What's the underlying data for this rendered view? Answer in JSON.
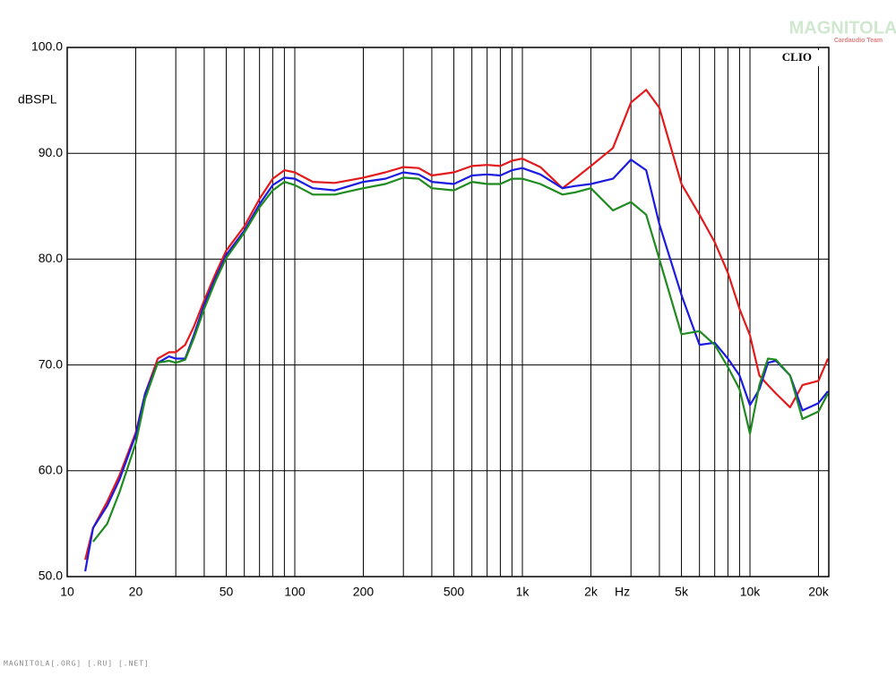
{
  "chart_data": {
    "type": "line",
    "brand": "CLIO",
    "y_label": "dBSPL",
    "x_unit": "Hz",
    "x_log": true,
    "grid": true,
    "x": [
      12,
      13,
      15,
      17,
      20,
      22,
      25,
      28,
      30,
      33,
      36,
      40,
      45,
      50,
      60,
      70,
      80,
      90,
      100,
      120,
      150,
      200,
      250,
      300,
      350,
      400,
      500,
      600,
      700,
      800,
      900,
      1000,
      1200,
      1500,
      1700,
      2000,
      2500,
      3000,
      3500,
      4000,
      5000,
      6000,
      7000,
      8000,
      9000,
      10000,
      11000,
      12000,
      13000,
      15000,
      17000,
      20000,
      22000
    ],
    "series": [
      {
        "color": "#e31a1c",
        "values": [
          51.6,
          54.6,
          57.1,
          59.6,
          63.6,
          67.3,
          70.6,
          71.2,
          71.2,
          71.9,
          73.6,
          76.1,
          78.7,
          80.8,
          83.1,
          85.7,
          87.6,
          88.4,
          88.2,
          87.3,
          87.2,
          87.7,
          88.2,
          88.7,
          88.6,
          87.9,
          88.2,
          88.8,
          88.9,
          88.8,
          89.3,
          89.5,
          88.7,
          86.7,
          87.6,
          88.8,
          90.5,
          94.8,
          96.0,
          94.3,
          87.1,
          84.2,
          81.6,
          78.7,
          75.3,
          72.8,
          69.0,
          68.1,
          67.3,
          66.0,
          68.1,
          68.5,
          70.6
        ]
      },
      {
        "color": "#1a1ae0",
        "values": [
          50.5,
          54.6,
          56.7,
          59.2,
          63.4,
          67.3,
          70.2,
          70.8,
          70.6,
          70.6,
          72.8,
          75.7,
          78.3,
          80.4,
          82.7,
          85.2,
          87.0,
          87.7,
          87.6,
          86.7,
          86.5,
          87.3,
          87.6,
          88.2,
          88.0,
          87.3,
          87.1,
          87.9,
          88.0,
          87.9,
          88.4,
          88.6,
          88.0,
          86.7,
          86.9,
          87.1,
          87.6,
          89.4,
          88.4,
          83.3,
          76.6,
          71.9,
          72.1,
          70.6,
          69.0,
          66.2,
          67.7,
          70.2,
          70.4,
          69.0,
          65.7,
          66.4,
          67.5
        ]
      },
      {
        "color": "#1f8a1f",
        "values": [
          null,
          53.3,
          55.0,
          58.0,
          62.6,
          66.8,
          70.2,
          70.4,
          70.2,
          70.5,
          72.5,
          75.3,
          78.0,
          80.1,
          82.5,
          84.9,
          86.5,
          87.3,
          87.0,
          86.1,
          86.1,
          86.7,
          87.1,
          87.7,
          87.6,
          86.7,
          86.5,
          87.3,
          87.1,
          87.1,
          87.6,
          87.6,
          87.1,
          86.1,
          86.3,
          86.7,
          84.6,
          85.4,
          84.2,
          80.0,
          72.9,
          73.2,
          71.9,
          69.8,
          67.7,
          63.5,
          68.1,
          70.6,
          70.5,
          69.0,
          64.9,
          65.6,
          67.3
        ]
      }
    ],
    "xlim": [
      10,
      22200
    ],
    "ylim": [
      50,
      100
    ],
    "xticks": [
      10,
      20,
      50,
      100,
      200,
      500,
      {
        "value": 1000,
        "label": "1k"
      },
      {
        "value": 2000,
        "label": "2k"
      },
      {
        "value": 5000,
        "label": "5k"
      },
      {
        "value": 10000,
        "label": "10k"
      },
      {
        "value": 20000,
        "label": "20k"
      }
    ],
    "x_minor_grid": [
      30,
      40,
      60,
      70,
      80,
      90,
      300,
      400,
      600,
      700,
      800,
      900,
      3000,
      4000,
      6000,
      7000,
      8000,
      9000
    ],
    "yticks": [
      {
        "value": 50,
        "label": "50.0"
      },
      {
        "value": 60,
        "label": "60.0"
      },
      {
        "value": 70,
        "label": "70.0"
      },
      {
        "value": 80,
        "label": "80.0"
      },
      {
        "value": 90,
        "label": "90.0"
      },
      {
        "value": 100,
        "label": "100.0"
      }
    ]
  },
  "watermark": {
    "title": "MAGNITOLA",
    "subtitle": "Cardaudio Team"
  },
  "footer": "MAGNITOLA[.ORG] [.RU] [.NET]"
}
